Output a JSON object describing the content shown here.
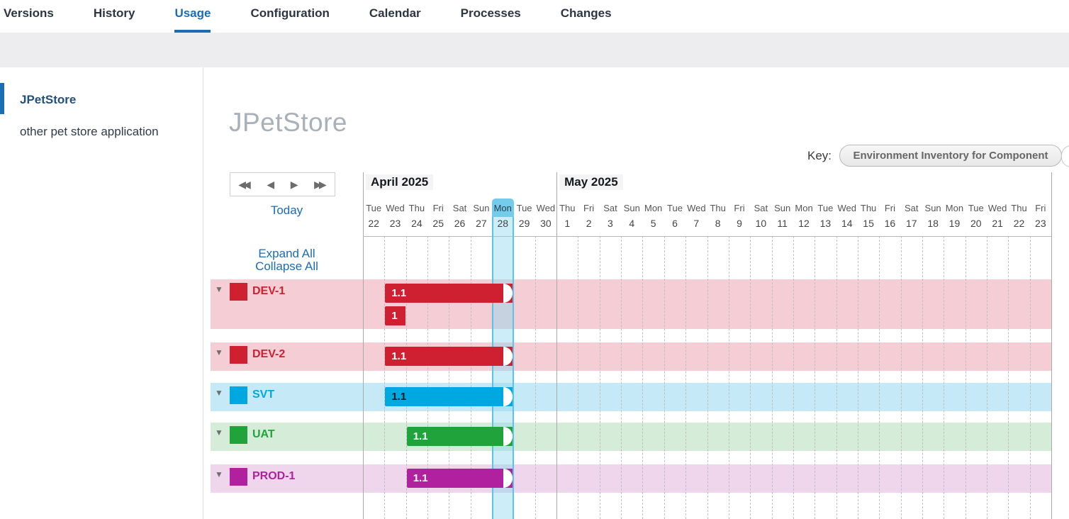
{
  "tabs": {
    "items": [
      "Versions",
      "History",
      "Usage",
      "Configuration",
      "Calendar",
      "Processes",
      "Changes"
    ],
    "active": "Usage"
  },
  "sidebar": {
    "items": [
      {
        "label": "JPetStore",
        "selected": true
      },
      {
        "label": "other pet store application",
        "selected": false
      }
    ]
  },
  "main": {
    "title": "JPetStore",
    "key_label": "Key:",
    "key_value": "Environment Inventory for Component"
  },
  "controls": {
    "today": "Today",
    "expand_all": "Expand All",
    "collapse_all": "Collapse All",
    "icons": {
      "fast_back": "◀◀",
      "back": "◀",
      "forward": "▶",
      "fast_forward": "▶▶"
    }
  },
  "colors": {
    "accent_blue": "#1a6cb5",
    "today_pill": "#73cce9",
    "today_border": "#58c4e8",
    "red": "#cf2031",
    "blue": "#00a8e1",
    "green": "#21a33c",
    "magenta": "#b1209e"
  },
  "chart_data": {
    "type": "gantt",
    "today": {
      "dow": "Mon",
      "date": 28,
      "month": "April 2025",
      "day_index": 6
    },
    "months": [
      {
        "label": "April 2025",
        "days": [
          [
            "Tue",
            22
          ],
          [
            "Wed",
            23
          ],
          [
            "Thu",
            24
          ],
          [
            "Fri",
            25
          ],
          [
            "Sat",
            26
          ],
          [
            "Sun",
            27
          ],
          [
            "Mon",
            28
          ],
          [
            "Tue",
            29
          ],
          [
            "Wed",
            30
          ]
        ]
      },
      {
        "label": "May 2025",
        "days": [
          [
            "Thu",
            1
          ],
          [
            "Fri",
            2
          ],
          [
            "Sat",
            3
          ],
          [
            "Sun",
            4
          ],
          [
            "Mon",
            5
          ],
          [
            "Tue",
            6
          ],
          [
            "Wed",
            7
          ],
          [
            "Thu",
            8
          ],
          [
            "Fri",
            9
          ],
          [
            "Sat",
            10
          ],
          [
            "Sun",
            11
          ],
          [
            "Mon",
            12
          ],
          [
            "Tue",
            13
          ],
          [
            "Wed",
            14
          ],
          [
            "Thu",
            15
          ],
          [
            "Fri",
            16
          ],
          [
            "Sat",
            17
          ],
          [
            "Sun",
            18
          ],
          [
            "Mon",
            19
          ],
          [
            "Tue",
            20
          ],
          [
            "Wed",
            21
          ],
          [
            "Thu",
            22
          ],
          [
            "Fri",
            23
          ]
        ]
      }
    ],
    "rows": [
      {
        "name": "DEV-1",
        "color": "#cf2031",
        "band_color": "#f5ced5",
        "bars": [
          {
            "label": "1.1",
            "start": 1,
            "end": 7,
            "lane": 0,
            "rounded_end": true,
            "text_color": "#ffffff"
          },
          {
            "label": "1",
            "start": 1,
            "end": 2,
            "lane": 1,
            "rounded_end": false,
            "text_color": "#ffffff"
          }
        ]
      },
      {
        "name": "DEV-2",
        "color": "#cf2031",
        "band_color": "#f5ced5",
        "bars": [
          {
            "label": "1.1",
            "start": 1,
            "end": 7,
            "lane": 0,
            "rounded_end": true,
            "text_color": "#ffffff"
          }
        ]
      },
      {
        "name": "SVT",
        "color": "#00a8e1",
        "band_color": "#c6e9f7",
        "bars": [
          {
            "label": "1.1",
            "start": 1,
            "end": 7,
            "lane": 0,
            "rounded_end": true,
            "text_color": "#1a1a1a"
          }
        ]
      },
      {
        "name": "UAT",
        "color": "#21a33c",
        "band_color": "#d5ecd9",
        "bars": [
          {
            "label": "1.1",
            "start": 2,
            "end": 7,
            "lane": 0,
            "rounded_end": true,
            "text_color": "#ffffff"
          }
        ]
      },
      {
        "name": "PROD-1",
        "color": "#b1209e",
        "band_color": "#efd6ec",
        "bars": [
          {
            "label": "1.1",
            "start": 2,
            "end": 7,
            "lane": 0,
            "rounded_end": true,
            "text_color": "#ffffff"
          }
        ]
      }
    ]
  }
}
